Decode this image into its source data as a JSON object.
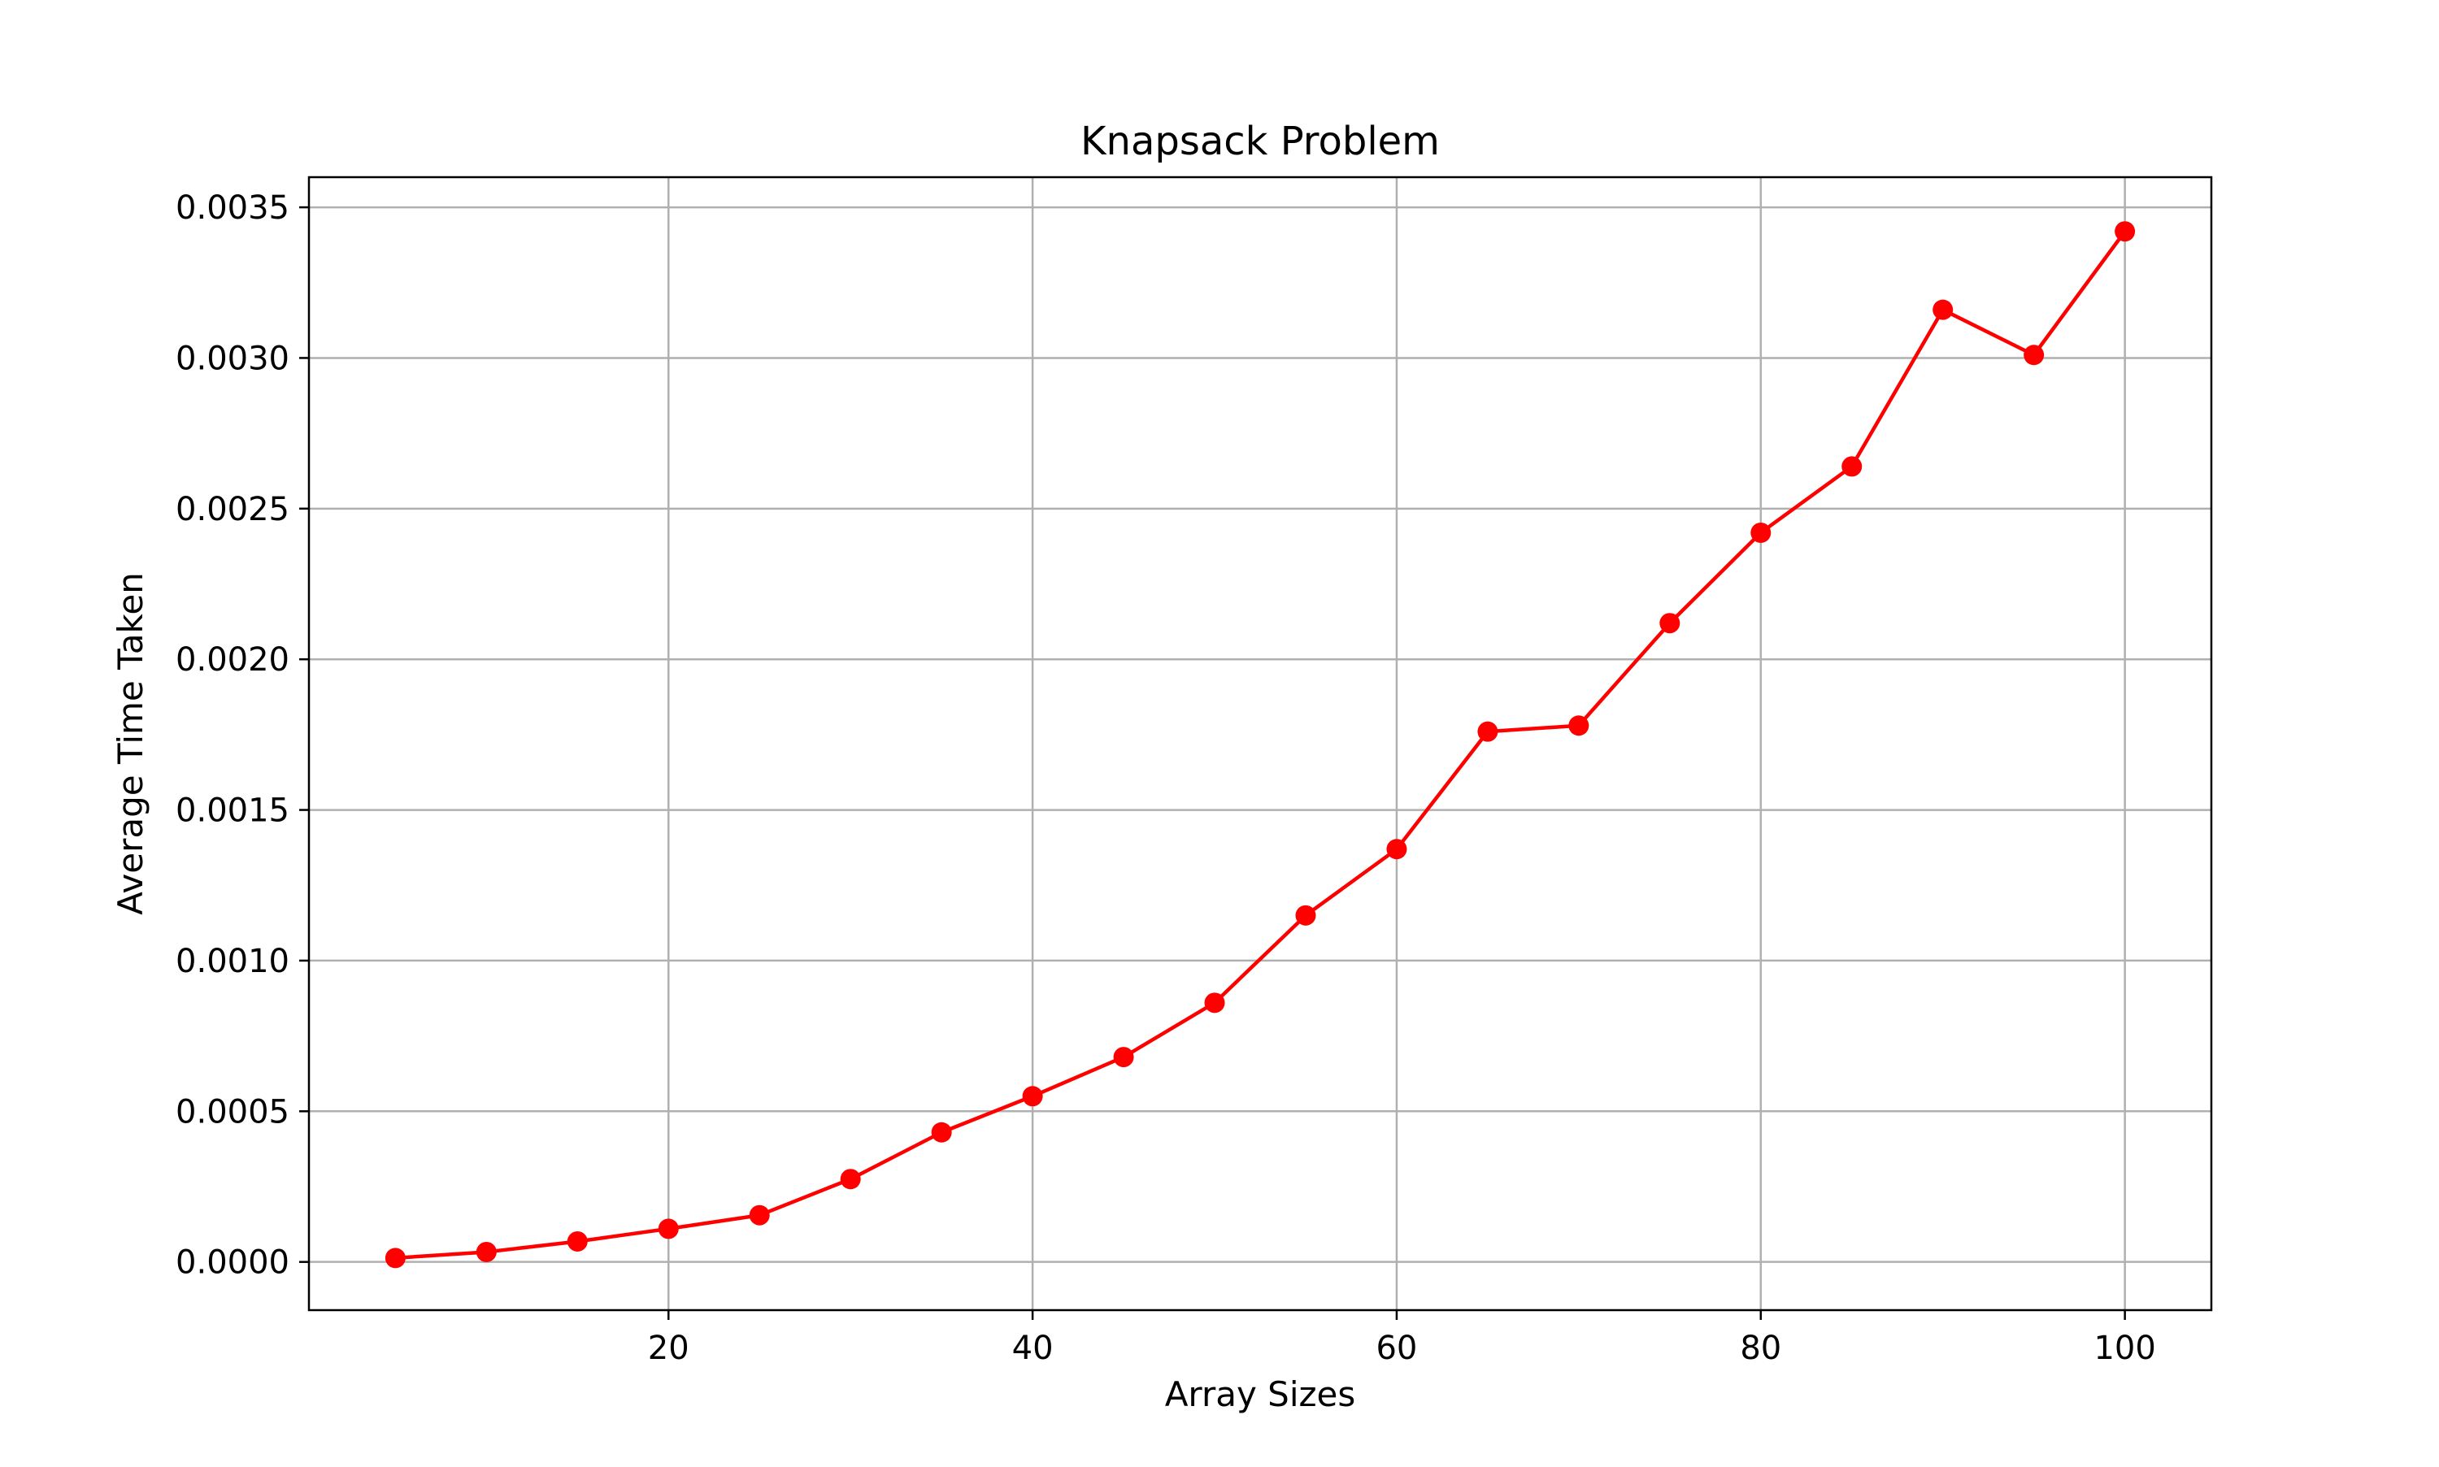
{
  "chart_data": {
    "type": "line",
    "title": "Knapsack Problem",
    "xlabel": "Array Sizes",
    "ylabel": "Average Time Taken",
    "xlim": [
      0.25,
      104.75
    ],
    "ylim": [
      -0.00016,
      0.0036
    ],
    "xticks": [
      20,
      40,
      60,
      80,
      100
    ],
    "xtick_labels": [
      "20",
      "40",
      "60",
      "80",
      "100"
    ],
    "yticks": [
      0.0,
      0.0005,
      0.001,
      0.0015,
      0.002,
      0.0025,
      0.003,
      0.0035
    ],
    "ytick_labels": [
      "0.0000",
      "0.0005",
      "0.0010",
      "0.0015",
      "0.0020",
      "0.0025",
      "0.0030",
      "0.0035"
    ],
    "grid": true,
    "x": [
      5,
      10,
      15,
      20,
      25,
      30,
      35,
      40,
      45,
      50,
      55,
      60,
      65,
      70,
      75,
      80,
      85,
      90,
      95,
      100
    ],
    "series": [
      {
        "values": [
          1.3e-05,
          3.3e-05,
          6.8e-05,
          0.00011,
          0.000155,
          0.000275,
          0.00043,
          0.00055,
          0.00068,
          0.00086,
          0.00115,
          0.00137,
          0.00176,
          0.00178,
          0.00212,
          0.00242,
          0.00264,
          0.00316,
          0.00301,
          0.00342
        ],
        "color": "#ff0000",
        "marker": "circle"
      }
    ]
  }
}
